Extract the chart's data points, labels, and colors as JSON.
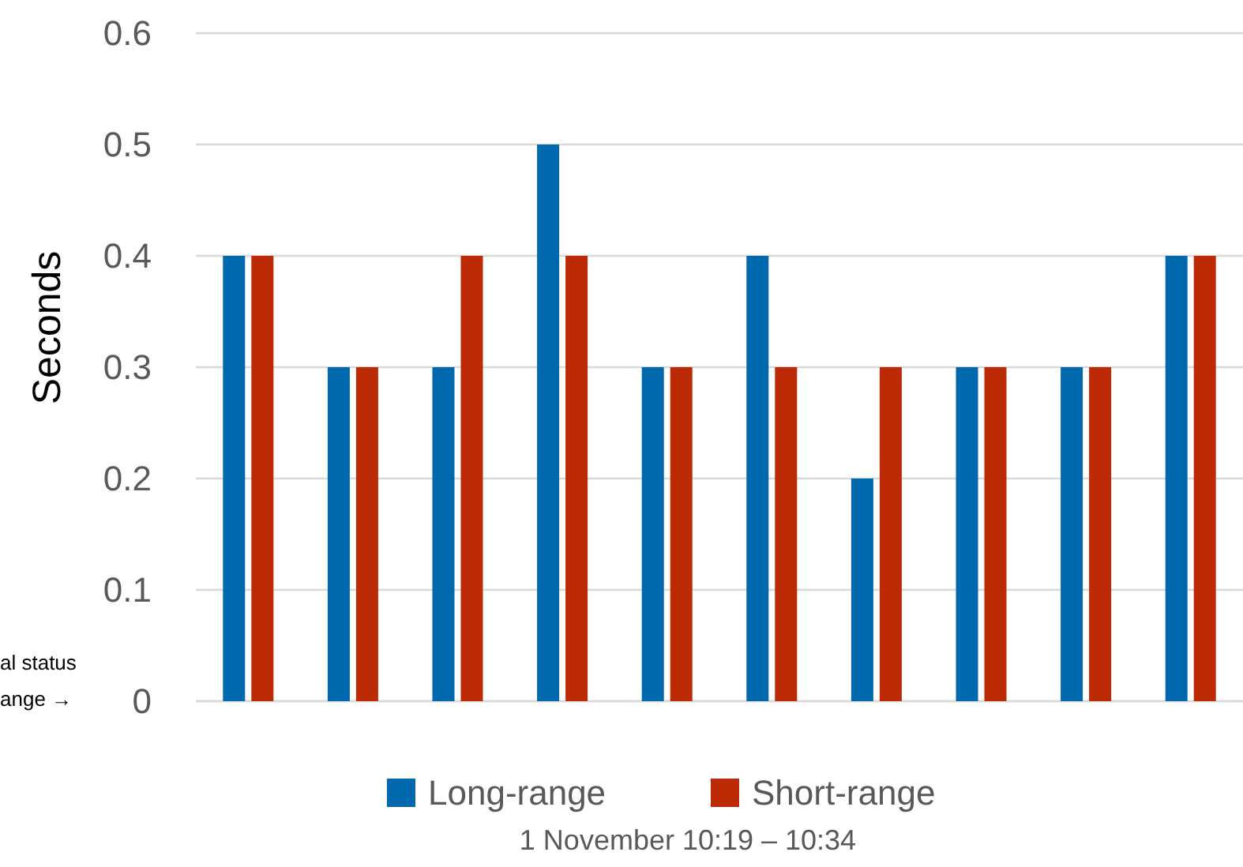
{
  "chart_data": {
    "type": "bar",
    "ylabel": "Seconds",
    "xlabel": "1 November  10:19 – 10:34",
    "categories": [
      null,
      null,
      null,
      null,
      null,
      null,
      null,
      null,
      null,
      null
    ],
    "series": [
      {
        "name": "Long-range",
        "color": "#0068ad",
        "values": [
          0.4,
          0.3,
          0.3,
          0.5,
          0.3,
          0.4,
          0.2,
          0.3,
          0.3,
          0.4
        ]
      },
      {
        "name": "Short-range",
        "color": "#bc2a06",
        "values": [
          0.4,
          0.3,
          0.4,
          0.4,
          0.3,
          0.3,
          0.3,
          0.3,
          0.3,
          0.4
        ]
      }
    ],
    "ylim": [
      0,
      0.6
    ],
    "yticks": [
      0,
      0.1,
      0.2,
      0.3,
      0.4,
      0.5,
      0.6
    ],
    "grid": "y",
    "legend": "bottom",
    "annotations": [
      "al status",
      "ange →"
    ]
  }
}
